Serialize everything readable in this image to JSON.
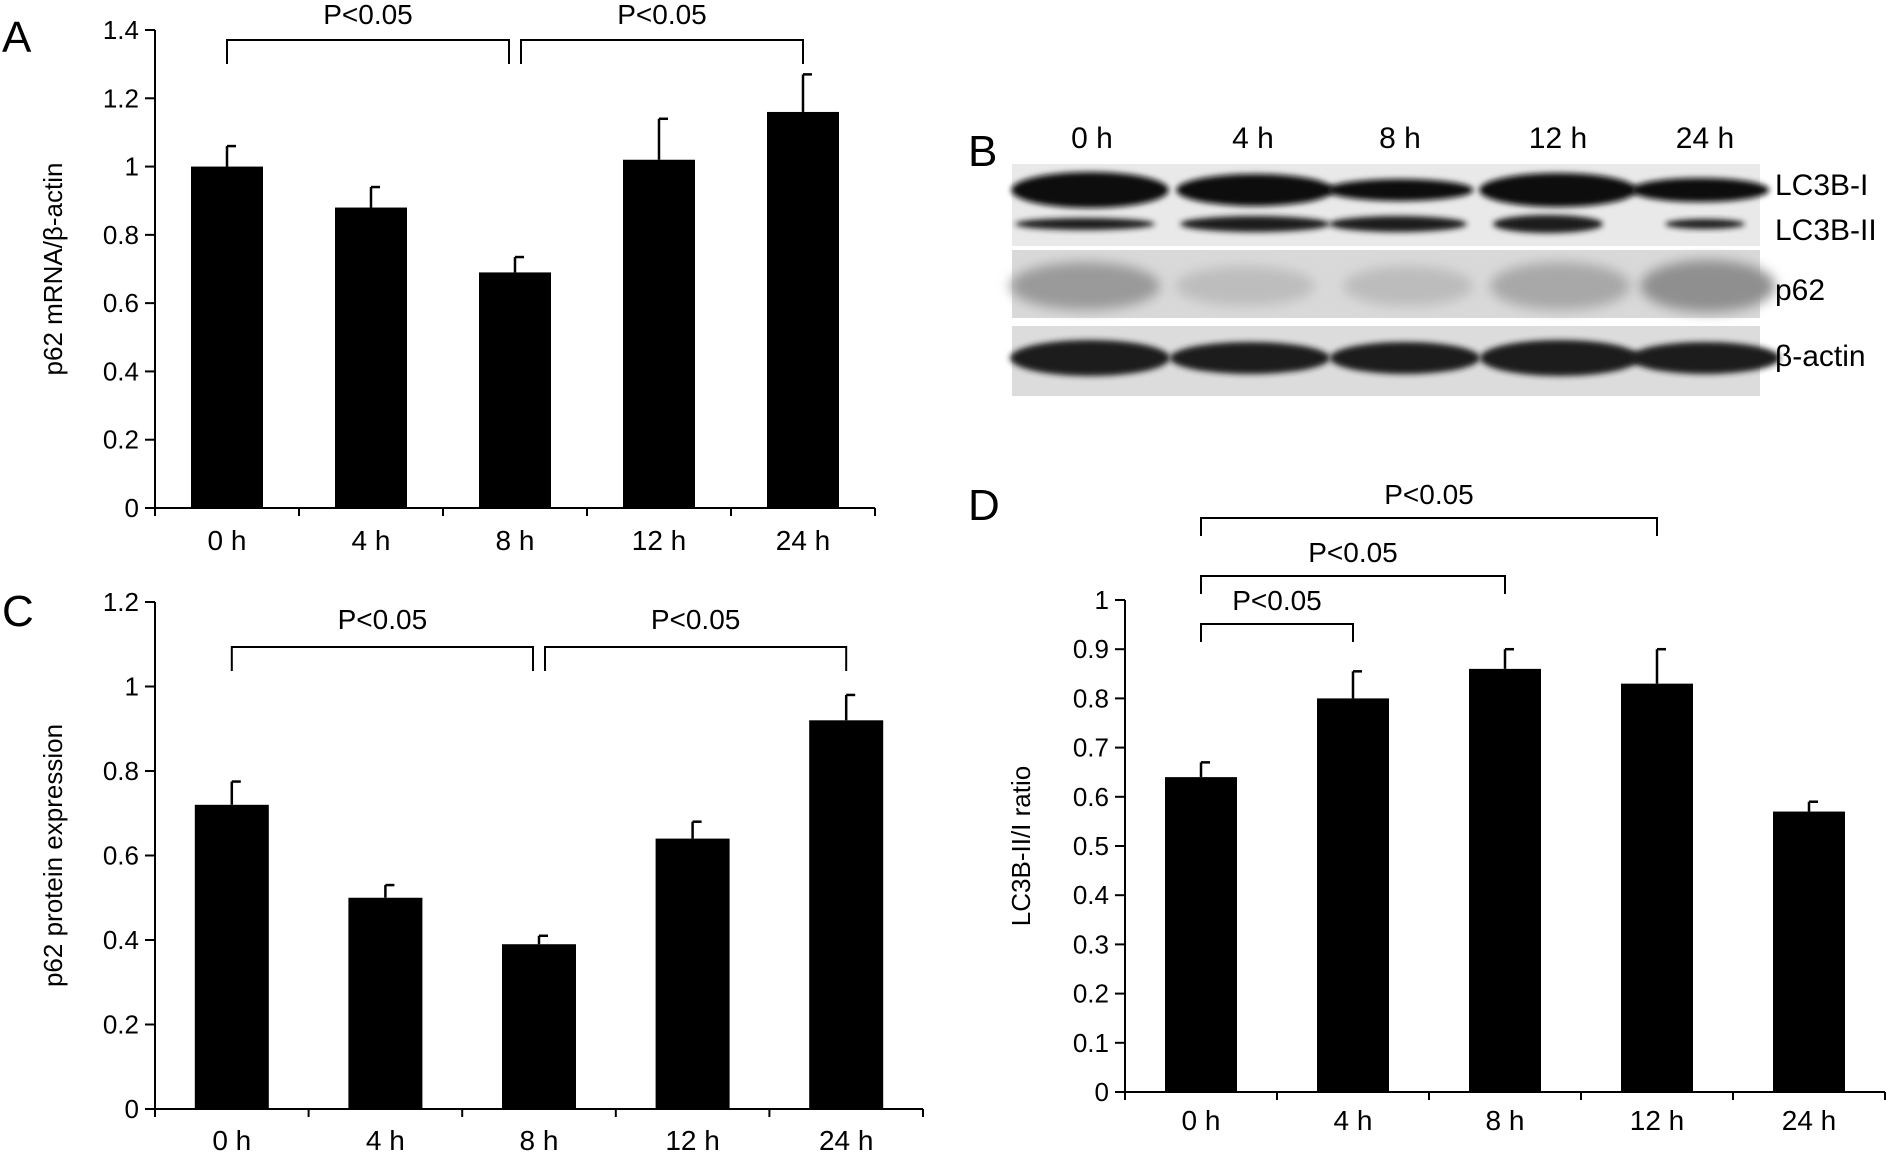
{
  "chart_data": [
    {
      "panel": "A",
      "type": "bar",
      "categories": [
        "0 h",
        "4 h",
        "8 h",
        "12 h",
        "24 h"
      ],
      "values": [
        1.0,
        0.88,
        0.69,
        1.02,
        1.16
      ],
      "errors": [
        0.06,
        0.06,
        0.045,
        0.12,
        0.11
      ],
      "ylabel": "p62 mRNA/β-actin",
      "xlabel": "",
      "ylim": [
        0,
        1.4
      ],
      "yticks": [
        0,
        0.2,
        0.4,
        0.6,
        0.8,
        1,
        1.2,
        1.4
      ],
      "ytick_labels": [
        "0",
        "0.2",
        "0.4",
        "0.6",
        "0.8",
        "1",
        "1.2",
        "1.4"
      ],
      "annotations": [
        {
          "from": 0,
          "to": 2,
          "text": "P<0.05"
        },
        {
          "from": 2,
          "to": 4,
          "text": "P<0.05"
        }
      ],
      "bar_color": "#000000"
    },
    {
      "panel": "C",
      "type": "bar",
      "categories": [
        "0 h",
        "4 h",
        "8 h",
        "12 h",
        "24 h"
      ],
      "values": [
        0.72,
        0.5,
        0.39,
        0.64,
        0.92
      ],
      "errors": [
        0.055,
        0.03,
        0.02,
        0.04,
        0.06
      ],
      "ylabel": "p62 protein expression",
      "xlabel": "",
      "ylim": [
        0,
        1.2
      ],
      "yticks": [
        0,
        0.2,
        0.4,
        0.6,
        0.8,
        1,
        1.2
      ],
      "ytick_labels": [
        "0",
        "0.2",
        "0.4",
        "0.6",
        "0.8",
        "1",
        "1.2"
      ],
      "annotations": [
        {
          "from": 0,
          "to": 2,
          "text": "P<0.05"
        },
        {
          "from": 2,
          "to": 4,
          "text": "P<0.05"
        }
      ],
      "bar_color": "#000000"
    },
    {
      "panel": "D",
      "type": "bar",
      "categories": [
        "0 h",
        "4 h",
        "8 h",
        "12 h",
        "24 h"
      ],
      "values": [
        0.64,
        0.8,
        0.86,
        0.83,
        0.57
      ],
      "errors": [
        0.03,
        0.055,
        0.04,
        0.07,
        0.02
      ],
      "ylabel": "LC3B-II/I ratio",
      "xlabel": "",
      "ylim": [
        0,
        1
      ],
      "yticks": [
        0,
        0.1,
        0.2,
        0.3,
        0.4,
        0.5,
        0.6,
        0.7,
        0.8,
        0.9,
        1
      ],
      "ytick_labels": [
        "0",
        "0.1",
        "0.2",
        "0.3",
        "0.4",
        "0.5",
        "0.6",
        "0.7",
        "0.8",
        "0.9",
        "1"
      ],
      "annotations": [
        {
          "from": 0,
          "to": 1,
          "text": "P<0.05"
        },
        {
          "from": 0,
          "to": 2,
          "text": "P<0.05"
        },
        {
          "from": 0,
          "to": 3,
          "text": "P<0.05"
        }
      ],
      "bar_color": "#000000"
    }
  ],
  "blot": {
    "panel": "B",
    "lanes": [
      "0 h",
      "4 h",
      "8 h",
      "12 h",
      "24 h"
    ],
    "labels": [
      "LC3B-I",
      "LC3B-II",
      "p62",
      "β-actin"
    ]
  }
}
